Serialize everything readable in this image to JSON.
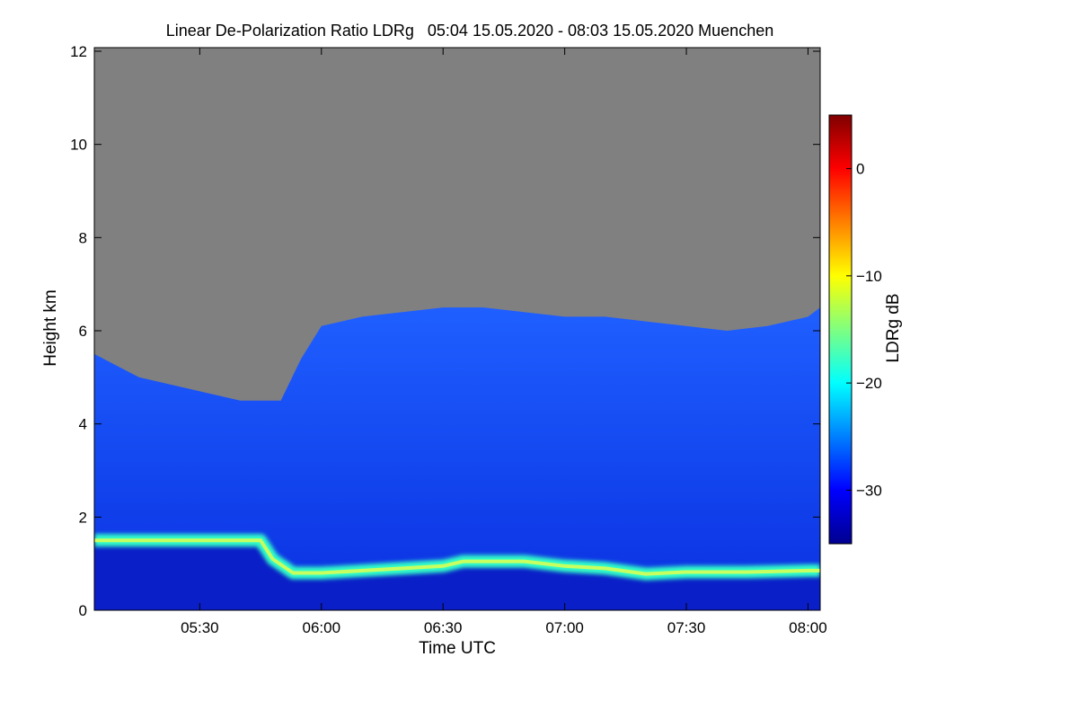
{
  "chart_data": {
    "type": "heatmap",
    "title": "Linear De-Polarization Ratio LDRg   05:04 15.05.2020 - 08:03 15.05.2020 Muenchen",
    "xlabel": "Time UTC",
    "ylabel": "Height km",
    "colorbar_label": "LDRg dB",
    "x_range": [
      "05:04",
      "08:03"
    ],
    "x_ticks": [
      "05:30",
      "06:00",
      "06:30",
      "07:00",
      "07:30",
      "08:00"
    ],
    "ylim": [
      0,
      12
    ],
    "y_ticks": [
      "0",
      "2",
      "4",
      "6",
      "8",
      "10",
      "12"
    ],
    "clim": [
      -35,
      5
    ],
    "colorbar_ticks": [
      "0",
      "-10",
      "-20",
      "-30"
    ],
    "colormap": "jet",
    "no_data_color": "#808080",
    "series": [
      {
        "name": "",
        "cloud_top_height_km": {
          "times": [
            "05:04",
            "05:15",
            "05:30",
            "05:40",
            "05:50",
            "05:55",
            "06:00",
            "06:10",
            "06:20",
            "06:30",
            "06:40",
            "06:50",
            "07:00",
            "07:10",
            "07:20",
            "07:30",
            "07:40",
            "07:50",
            "08:00",
            "08:03"
          ],
          "values": [
            5.5,
            5.0,
            4.7,
            4.5,
            4.5,
            5.4,
            6.1,
            6.3,
            6.4,
            6.5,
            6.5,
            6.4,
            6.3,
            6.3,
            6.2,
            6.1,
            6.0,
            6.1,
            6.3,
            6.5
          ]
        },
        "boundary_layer_top_km": {
          "times": [
            "05:04",
            "05:20",
            "05:40",
            "05:45",
            "05:48",
            "05:53",
            "06:00",
            "06:20",
            "06:30",
            "06:35",
            "06:50",
            "07:00",
            "07:10",
            "07:20",
            "07:30",
            "07:45",
            "08:00",
            "08:03"
          ],
          "values": [
            1.5,
            1.5,
            1.5,
            1.5,
            1.1,
            0.8,
            0.8,
            0.9,
            0.95,
            1.05,
            1.05,
            0.95,
            0.9,
            0.78,
            0.82,
            0.82,
            0.85,
            0.85
          ]
        }
      }
    ],
    "grid": false,
    "legend": "colorbar-right"
  }
}
